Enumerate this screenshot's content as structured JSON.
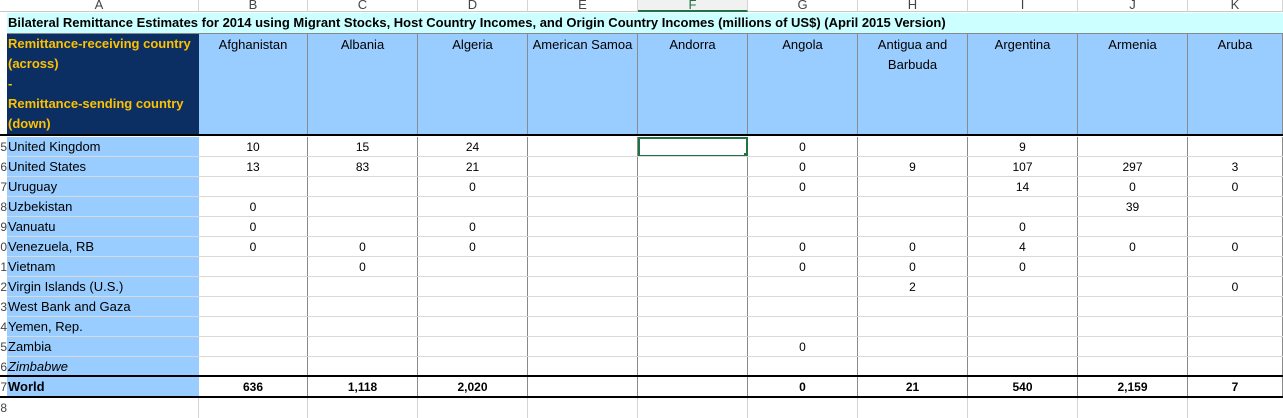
{
  "sheet": {
    "col_letters": [
      "A",
      "B",
      "C",
      "D",
      "E",
      "F",
      "G",
      "H",
      "I",
      "J",
      "K"
    ],
    "active_col": "F",
    "row_gutter": [
      "5",
      "6",
      "7",
      "8",
      "9",
      "0",
      "1",
      "2",
      "3",
      "4",
      "5",
      "6",
      "7",
      "8"
    ],
    "title": "Bilateral Remittance Estimates for 2014 using Migrant Stocks, Host Country Incomes, and Origin Country Incomes (millions of US$) (April 2015 Version)",
    "corner_lines": [
      "Remittance-receiving country",
      "(across)",
      "-",
      "Remittance-sending country",
      "(down)"
    ],
    "countries": [
      "Afghanistan",
      "Albania",
      "Algeria",
      "American Samoa",
      "Andorra",
      "Angola",
      "Antigua and Barbuda",
      "Argentina",
      "Armenia",
      "Aruba"
    ],
    "rows": [
      {
        "label": "United Kingdom",
        "italic": false,
        "values": [
          "10",
          "15",
          "24",
          "",
          "",
          "0",
          "",
          "9",
          "",
          ""
        ]
      },
      {
        "label": "United States",
        "italic": false,
        "values": [
          "13",
          "83",
          "21",
          "",
          "",
          "0",
          "9",
          "107",
          "297",
          "3"
        ]
      },
      {
        "label": "Uruguay",
        "italic": false,
        "values": [
          "",
          "",
          "0",
          "",
          "",
          "0",
          "",
          "14",
          "0",
          "0"
        ]
      },
      {
        "label": "Uzbekistan",
        "italic": false,
        "values": [
          "0",
          "",
          "",
          "",
          "",
          "",
          "",
          "",
          "39",
          ""
        ]
      },
      {
        "label": "Vanuatu",
        "italic": false,
        "values": [
          "0",
          "",
          "0",
          "",
          "",
          "",
          "",
          "0",
          "",
          ""
        ]
      },
      {
        "label": "Venezuela, RB",
        "italic": false,
        "values": [
          "0",
          "0",
          "0",
          "",
          "",
          "0",
          "0",
          "4",
          "0",
          "0"
        ]
      },
      {
        "label": "Vietnam",
        "italic": false,
        "values": [
          "",
          "0",
          "",
          "",
          "",
          "0",
          "0",
          "0",
          "",
          ""
        ]
      },
      {
        "label": "Virgin Islands (U.S.)",
        "italic": false,
        "values": [
          "",
          "",
          "",
          "",
          "",
          "",
          "2",
          "",
          "",
          "0"
        ]
      },
      {
        "label": "West Bank and Gaza",
        "italic": false,
        "values": [
          "",
          "",
          "",
          "",
          "",
          "",
          "",
          "",
          "",
          ""
        ]
      },
      {
        "label": "Yemen, Rep.",
        "italic": false,
        "values": [
          "",
          "",
          "",
          "",
          "",
          "",
          "",
          "",
          "",
          ""
        ]
      },
      {
        "label": "Zambia",
        "italic": false,
        "values": [
          "",
          "",
          "",
          "",
          "",
          "0",
          "",
          "",
          "",
          ""
        ]
      },
      {
        "label": "Zimbabwe",
        "italic": true,
        "values": [
          "",
          "",
          "",
          "",
          "",
          "",
          "",
          "",
          "",
          ""
        ]
      }
    ],
    "world": {
      "label": "World",
      "values": [
        "636",
        "1,118",
        "2,020",
        "",
        "",
        "0",
        "21",
        "540",
        "2,159",
        "7"
      ]
    },
    "selected_cell": {
      "row": 0,
      "col": 4
    },
    "colors": {
      "header_blue": "#99ccff",
      "corner_navy": "#0b2f63",
      "corner_text": "#ffc000",
      "title_bg": "#ccffff",
      "select_green": "#217346"
    }
  }
}
